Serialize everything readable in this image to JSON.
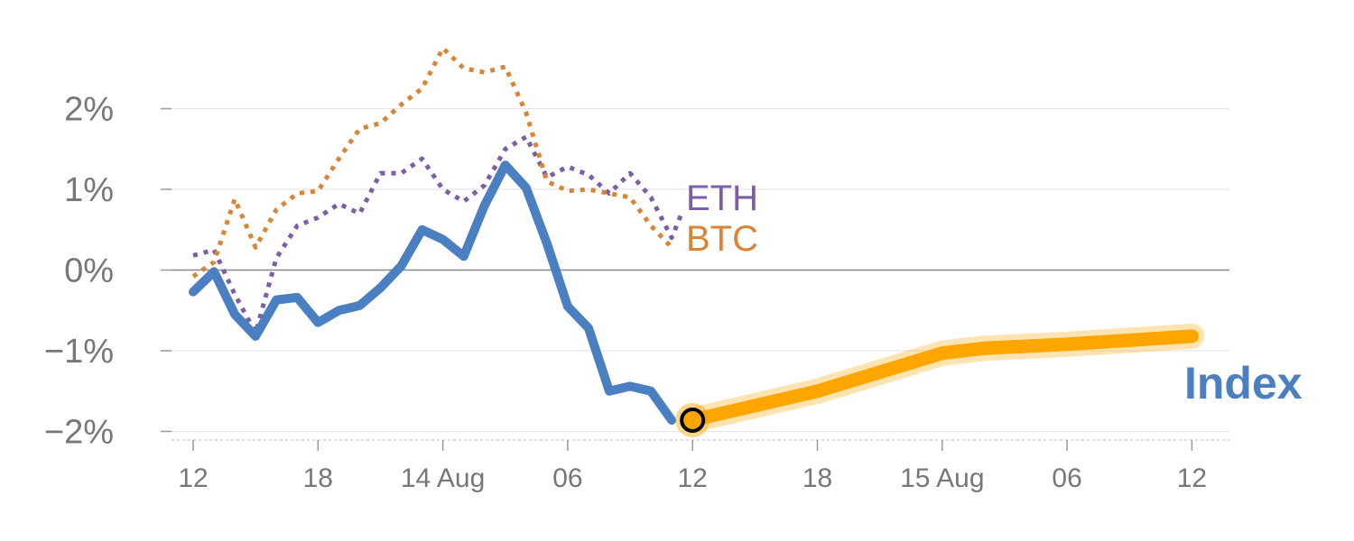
{
  "chart_data": {
    "type": "line",
    "x_tick_labels": [
      "12",
      "18",
      "14 Aug",
      "06",
      "12",
      "18",
      "15 Aug",
      "06",
      "12"
    ],
    "y_tick_labels": [
      "2%",
      "1%",
      "0%",
      "−1%",
      "−2%"
    ],
    "y_ticks": [
      2,
      1,
      0,
      -1,
      -2
    ],
    "ylim": [
      -2.1,
      2.8
    ],
    "x_axis": "hourly timestamps, each tick 6 hours apart, 13 Aug 12:00 to 15 Aug 12:00",
    "series": [
      {
        "name": "Index",
        "color": "#4a7fc1",
        "style": "solid",
        "x": [
          "13 Aug 12:00",
          "13 Aug 13:00",
          "13 Aug 14:00",
          "13 Aug 15:00",
          "13 Aug 16:00",
          "13 Aug 17:00",
          "13 Aug 18:00",
          "13 Aug 19:00",
          "13 Aug 20:00",
          "13 Aug 21:00",
          "13 Aug 22:00",
          "13 Aug 23:00",
          "14 Aug 00:00",
          "14 Aug 01:00",
          "14 Aug 02:00",
          "14 Aug 03:00",
          "14 Aug 04:00",
          "14 Aug 05:00",
          "14 Aug 06:00",
          "14 Aug 07:00",
          "14 Aug 08:00",
          "14 Aug 09:00",
          "14 Aug 10:00",
          "14 Aug 11:00"
        ],
        "values": [
          -0.27,
          -0.02,
          -0.55,
          -0.82,
          -0.37,
          -0.34,
          -0.65,
          -0.5,
          -0.44,
          -0.22,
          0.05,
          0.5,
          0.38,
          0.17,
          0.8,
          1.3,
          1.02,
          0.33,
          -0.45,
          -0.72,
          -1.5,
          -1.44,
          -1.5,
          -1.86
        ]
      },
      {
        "name": "ETH",
        "color": "#7b5ea7",
        "style": "dotted",
        "x": [
          "13 Aug 12:00",
          "13 Aug 13:00",
          "13 Aug 14:00",
          "13 Aug 15:00",
          "13 Aug 16:00",
          "13 Aug 17:00",
          "13 Aug 18:00",
          "13 Aug 19:00",
          "13 Aug 20:00",
          "13 Aug 21:00",
          "13 Aug 22:00",
          "13 Aug 23:00",
          "14 Aug 00:00",
          "14 Aug 01:00",
          "14 Aug 02:00",
          "14 Aug 03:00",
          "14 Aug 04:00",
          "14 Aug 05:00",
          "14 Aug 06:00",
          "14 Aug 07:00",
          "14 Aug 08:00",
          "14 Aug 09:00",
          "14 Aug 10:00",
          "14 Aug 11:00",
          "14 Aug 11:30"
        ],
        "values": [
          0.18,
          0.25,
          -0.3,
          -0.78,
          0.15,
          0.55,
          0.65,
          0.82,
          0.7,
          1.2,
          1.2,
          1.38,
          1.0,
          0.85,
          1.05,
          1.5,
          1.65,
          1.15,
          1.28,
          1.18,
          0.95,
          1.2,
          0.9,
          0.4,
          0.72
        ]
      },
      {
        "name": "BTC",
        "color": "#d98535",
        "style": "dotted",
        "x": [
          "13 Aug 12:00",
          "13 Aug 13:00",
          "13 Aug 14:00",
          "13 Aug 15:00",
          "13 Aug 16:00",
          "13 Aug 17:00",
          "13 Aug 18:00",
          "13 Aug 19:00",
          "13 Aug 20:00",
          "13 Aug 21:00",
          "13 Aug 22:00",
          "13 Aug 23:00",
          "14 Aug 00:00",
          "14 Aug 01:00",
          "14 Aug 02:00",
          "14 Aug 03:00",
          "14 Aug 04:00",
          "14 Aug 05:00",
          "14 Aug 06:00",
          "14 Aug 07:00",
          "14 Aug 08:00",
          "14 Aug 09:00",
          "14 Aug 10:00",
          "14 Aug 11:00"
        ],
        "values": [
          -0.08,
          0.1,
          0.88,
          0.28,
          0.75,
          0.95,
          0.98,
          1.38,
          1.75,
          1.82,
          2.05,
          2.25,
          2.75,
          2.5,
          2.45,
          2.52,
          1.95,
          1.1,
          0.98,
          1.0,
          0.95,
          0.9,
          0.55,
          0.28
        ]
      },
      {
        "name": "Index",
        "role": "forecast",
        "color": "#ffa500",
        "style": "thick",
        "x": [
          "14 Aug 12:00",
          "14 Aug 18:00",
          "15 Aug 00:00",
          "15 Aug 02:00",
          "15 Aug 06:00",
          "15 Aug 12:00"
        ],
        "values": [
          -1.86,
          -1.5,
          -1.03,
          -0.97,
          -0.92,
          -0.82
        ]
      }
    ],
    "labels": {
      "eth": "ETH",
      "btc": "BTC",
      "index": "Index"
    },
    "marker": {
      "x": "14 Aug 12:00",
      "value": -1.86
    },
    "zero_line": true,
    "grid": "horizontal",
    "legend": "inline labels at line ends"
  }
}
